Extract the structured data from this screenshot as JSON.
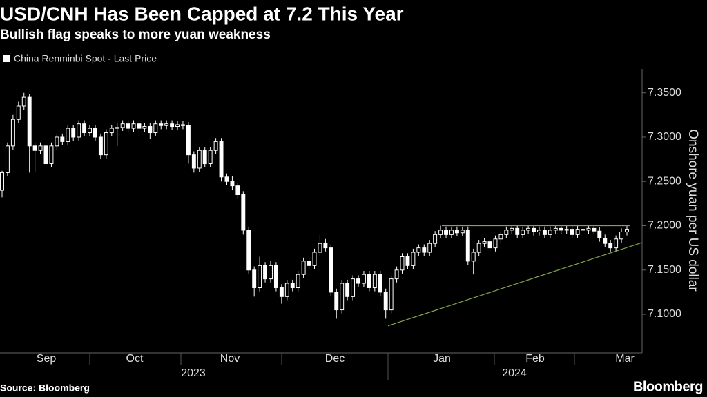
{
  "chart_data": {
    "type": "candlestick",
    "title": "USD/CNH Has Been Capped at 7.2 This Year",
    "subtitle": "Bullish flag speaks to more yuan weakness",
    "y_label": "Onshore yuan per US dollar",
    "source": "Source: Bloomberg",
    "brand": "Bloomberg",
    "x_labels": [
      "Sep",
      "Oct",
      "Nov",
      "Dec",
      "Jan",
      "Feb",
      "Mar"
    ],
    "x_groups": [
      "2023",
      "2024"
    ],
    "ylim": [
      7.058,
      7.377
    ],
    "yticks": [
      {
        "value": 7.1,
        "label": "7.1000"
      },
      {
        "value": 7.15,
        "label": "7.1500"
      },
      {
        "value": 7.2,
        "label": "7.2000"
      },
      {
        "value": 7.25,
        "label": "7.2500"
      },
      {
        "value": 7.3,
        "label": "7.3000"
      },
      {
        "value": 7.35,
        "label": "7.3500"
      }
    ],
    "series": [
      {
        "name": "China Renminbi Spot - Last Price",
        "color": "#ffffff",
        "values": [
          [
            7.24,
            7.262,
            7.232,
            7.26
          ],
          [
            7.26,
            7.294,
            7.256,
            7.29
          ],
          [
            7.29,
            7.325,
            7.286,
            7.32
          ],
          [
            7.32,
            7.34,
            7.316,
            7.335
          ],
          [
            7.335,
            7.35,
            7.331,
            7.345
          ],
          [
            7.345,
            7.349,
            7.26,
            7.29
          ],
          [
            7.29,
            7.294,
            7.26,
            7.285
          ],
          [
            7.285,
            7.294,
            7.281,
            7.29
          ],
          [
            7.29,
            7.294,
            7.24,
            7.27
          ],
          [
            7.27,
            7.294,
            7.266,
            7.29
          ],
          [
            7.29,
            7.304,
            7.286,
            7.3
          ],
          [
            7.3,
            7.304,
            7.291,
            7.295
          ],
          [
            7.295,
            7.314,
            7.291,
            7.31
          ],
          [
            7.31,
            7.314,
            7.296,
            7.3
          ],
          [
            7.3,
            7.319,
            7.296,
            7.315
          ],
          [
            7.315,
            7.319,
            7.301,
            7.305
          ],
          [
            7.305,
            7.314,
            7.301,
            7.31
          ],
          [
            7.31,
            7.314,
            7.296,
            7.3
          ],
          [
            7.3,
            7.304,
            7.275,
            7.28
          ],
          [
            7.28,
            7.309,
            7.276,
            7.305
          ],
          [
            7.305,
            7.314,
            7.301,
            7.31
          ],
          [
            7.31,
            7.316,
            7.29,
            7.311
          ],
          [
            7.311,
            7.319,
            7.307,
            7.315
          ],
          [
            7.315,
            7.319,
            7.306,
            7.31
          ],
          [
            7.31,
            7.319,
            7.306,
            7.315
          ],
          [
            7.315,
            7.319,
            7.3,
            7.31
          ],
          [
            7.31,
            7.316,
            7.306,
            7.312
          ],
          [
            7.312,
            7.316,
            7.298,
            7.305
          ],
          [
            7.305,
            7.319,
            7.301,
            7.315
          ],
          [
            7.315,
            7.319,
            7.309,
            7.313
          ],
          [
            7.313,
            7.319,
            7.309,
            7.315
          ],
          [
            7.315,
            7.319,
            7.308,
            7.312
          ],
          [
            7.312,
            7.318,
            7.308,
            7.314
          ],
          [
            7.314,
            7.318,
            7.309,
            7.313
          ],
          [
            7.313,
            7.317,
            7.27,
            7.28
          ],
          [
            7.28,
            7.284,
            7.26,
            7.265
          ],
          [
            7.265,
            7.289,
            7.261,
            7.285
          ],
          [
            7.285,
            7.289,
            7.266,
            7.27
          ],
          [
            7.27,
            7.289,
            7.266,
            7.285
          ],
          [
            7.285,
            7.299,
            7.281,
            7.295
          ],
          [
            7.295,
            7.299,
            7.25,
            7.255
          ],
          [
            7.255,
            7.259,
            7.246,
            7.25
          ],
          [
            7.25,
            7.256,
            7.24,
            7.245
          ],
          [
            7.245,
            7.249,
            7.231,
            7.235
          ],
          [
            7.235,
            7.239,
            7.19,
            7.195
          ],
          [
            7.195,
            7.199,
            7.146,
            7.15
          ],
          [
            7.15,
            7.154,
            7.12,
            7.13
          ],
          [
            7.13,
            7.165,
            7.126,
            7.155
          ],
          [
            7.155,
            7.159,
            7.136,
            7.14
          ],
          [
            7.14,
            7.16,
            7.136,
            7.155
          ],
          [
            7.155,
            7.159,
            7.126,
            7.13
          ],
          [
            7.13,
            7.134,
            7.112,
            7.12
          ],
          [
            7.12,
            7.139,
            7.116,
            7.135
          ],
          [
            7.135,
            7.139,
            7.126,
            7.13
          ],
          [
            7.13,
            7.149,
            7.126,
            7.145
          ],
          [
            7.145,
            7.164,
            7.141,
            7.16
          ],
          [
            7.16,
            7.164,
            7.151,
            7.155
          ],
          [
            7.155,
            7.174,
            7.151,
            7.17
          ],
          [
            7.17,
            7.19,
            7.166,
            7.18
          ],
          [
            7.18,
            7.185,
            7.171,
            7.175
          ],
          [
            7.175,
            7.179,
            7.12,
            7.125
          ],
          [
            7.125,
            7.129,
            7.095,
            7.105
          ],
          [
            7.105,
            7.139,
            7.101,
            7.135
          ],
          [
            7.135,
            7.139,
            7.116,
            7.12
          ],
          [
            7.12,
            7.144,
            7.116,
            7.14
          ],
          [
            7.14,
            7.144,
            7.131,
            7.135
          ],
          [
            7.135,
            7.149,
            7.131,
            7.145
          ],
          [
            7.145,
            7.149,
            7.126,
            7.13
          ],
          [
            7.13,
            7.149,
            7.126,
            7.145
          ],
          [
            7.145,
            7.149,
            7.121,
            7.125
          ],
          [
            7.125,
            7.129,
            7.095,
            7.105
          ],
          [
            7.105,
            7.144,
            7.101,
            7.14
          ],
          [
            7.14,
            7.154,
            7.136,
            7.15
          ],
          [
            7.15,
            7.169,
            7.146,
            7.165
          ],
          [
            7.165,
            7.169,
            7.151,
            7.155
          ],
          [
            7.155,
            7.174,
            7.151,
            7.17
          ],
          [
            7.17,
            7.179,
            7.166,
            7.175
          ],
          [
            7.175,
            7.179,
            7.166,
            7.17
          ],
          [
            7.17,
            7.184,
            7.166,
            7.18
          ],
          [
            7.18,
            7.194,
            7.176,
            7.19
          ],
          [
            7.19,
            7.2,
            7.186,
            7.195
          ],
          [
            7.195,
            7.199,
            7.186,
            7.19
          ],
          [
            7.19,
            7.199,
            7.186,
            7.195
          ],
          [
            7.195,
            7.199,
            7.188,
            7.192
          ],
          [
            7.192,
            7.199,
            7.188,
            7.195
          ],
          [
            7.195,
            7.199,
            7.156,
            7.16
          ],
          [
            7.16,
            7.174,
            7.145,
            7.17
          ],
          [
            7.17,
            7.184,
            7.166,
            7.18
          ],
          [
            7.18,
            7.186,
            7.176,
            7.182
          ],
          [
            7.182,
            7.186,
            7.171,
            7.175
          ],
          [
            7.175,
            7.189,
            7.171,
            7.185
          ],
          [
            7.185,
            7.194,
            7.181,
            7.19
          ],
          [
            7.19,
            7.199,
            7.186,
            7.195
          ],
          [
            7.195,
            7.2,
            7.191,
            7.197
          ],
          [
            7.197,
            7.2,
            7.186,
            7.19
          ],
          [
            7.19,
            7.199,
            7.186,
            7.195
          ],
          [
            7.195,
            7.2,
            7.191,
            7.197
          ],
          [
            7.197,
            7.2,
            7.189,
            7.193
          ],
          [
            7.193,
            7.199,
            7.189,
            7.195
          ],
          [
            7.195,
            7.199,
            7.186,
            7.19
          ],
          [
            7.19,
            7.199,
            7.186,
            7.195
          ],
          [
            7.195,
            7.2,
            7.191,
            7.197
          ],
          [
            7.197,
            7.2,
            7.191,
            7.195
          ],
          [
            7.195,
            7.2,
            7.191,
            7.196
          ],
          [
            7.196,
            7.2,
            7.186,
            7.19
          ],
          [
            7.19,
            7.2,
            7.186,
            7.196
          ],
          [
            7.196,
            7.2,
            7.191,
            7.195
          ],
          [
            7.195,
            7.2,
            7.191,
            7.197
          ],
          [
            7.197,
            7.2,
            7.19,
            7.194
          ],
          [
            7.194,
            7.198,
            7.182,
            7.186
          ],
          [
            7.186,
            7.19,
            7.176,
            7.18
          ],
          [
            7.18,
            7.184,
            7.171,
            7.175
          ],
          [
            7.175,
            7.189,
            7.171,
            7.185
          ],
          [
            7.185,
            7.197,
            7.181,
            7.193
          ],
          [
            7.193,
            7.2,
            7.189,
            7.196
          ]
        ]
      }
    ],
    "trendlines": [
      {
        "color": "#7fa64a",
        "values": [
          7.2,
          7.2
        ]
      },
      {
        "color": "#7fa64a",
        "values": [
          7.087,
          7.181
        ]
      }
    ]
  }
}
